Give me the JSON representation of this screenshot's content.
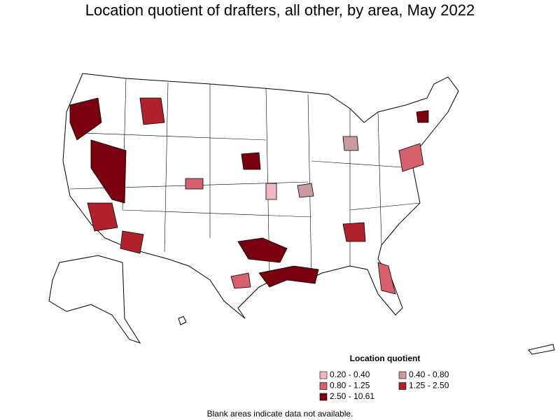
{
  "title": "Location quotient of drafters, all other, by area, May 2022",
  "legend": {
    "title": "Location quotient",
    "items": [
      {
        "label": "0.20 - 0.40",
        "color": "#f4b6c0"
      },
      {
        "label": "0.40 - 0.80",
        "color": "#c99a9e"
      },
      {
        "label": "0.80 - 1.25",
        "color": "#d6606c"
      },
      {
        "label": "1.25 - 2.50",
        "color": "#b0212b"
      },
      {
        "label": "2.50 - 10.61",
        "color": "#7a0010"
      }
    ]
  },
  "note": "Blank areas indicate data not available."
}
